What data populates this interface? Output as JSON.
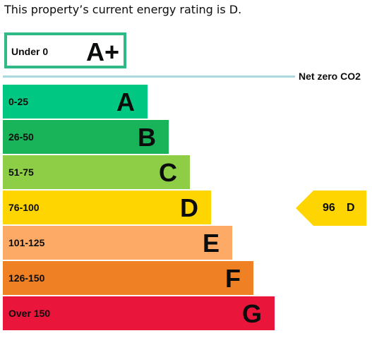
{
  "intro_text": "This property’s current energy rating is D.",
  "aplus": {
    "range": "Under 0",
    "letter": "A+",
    "color": "#2fb984"
  },
  "net_zero": {
    "label": "Net zero CO2",
    "line_color": "#a9d8df"
  },
  "bands": [
    {
      "range": "0-25",
      "letter": "A",
      "color": "#00c781"
    },
    {
      "range": "26-50",
      "letter": "B",
      "color": "#19b459"
    },
    {
      "range": "51-75",
      "letter": "C",
      "color": "#8dce46"
    },
    {
      "range": "76-100",
      "letter": "D",
      "color": "#ffd500"
    },
    {
      "range": "101-125",
      "letter": "E",
      "color": "#fcaa65"
    },
    {
      "range": "126-150",
      "letter": "F",
      "color": "#ef8023"
    },
    {
      "range": "Over 150",
      "letter": "G",
      "color": "#e9153b"
    }
  ],
  "current_rating": {
    "value": "96",
    "letter": "D",
    "color": "#fed500"
  }
}
